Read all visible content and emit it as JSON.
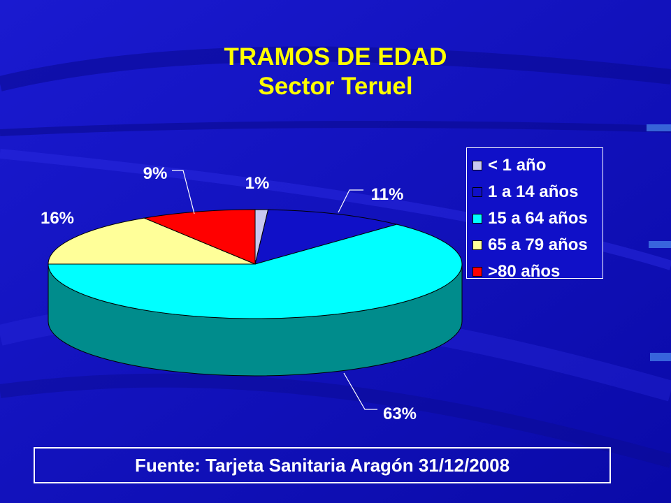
{
  "title": "TRAMOS DE EDAD",
  "subtitle": "Sector Teruel",
  "source": "Fuente: Tarjeta Sanitaria Aragón 31/12/2008",
  "chart_data": {
    "type": "pie",
    "title": "TRAMOS DE EDAD",
    "subtitle": "Sector Teruel",
    "legend_position": "right",
    "slices": [
      {
        "label": "< 1 año",
        "value": 1,
        "display": "1%",
        "color": "#c8c8f0"
      },
      {
        "label": "1 a 14 años",
        "value": 11,
        "display": "11%",
        "color": "#1010c8"
      },
      {
        "label": "15 a 64 años",
        "value": 63,
        "display": "63%",
        "color": "#00ffff"
      },
      {
        "label": "65 a 79 años",
        "value": 16,
        "display": "16%",
        "color": "#ffff99"
      },
      {
        "label": ">80 años",
        "value": 9,
        "display": "9%",
        "color": "#ff0000"
      }
    ]
  }
}
